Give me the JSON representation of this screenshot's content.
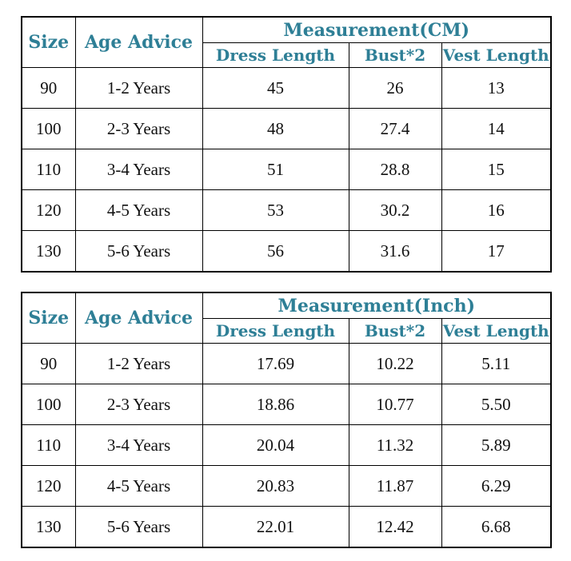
{
  "page": {
    "background": "#ffffff",
    "accent_color": "#2e7f96",
    "text_color": "#111111",
    "border_color": "#000000"
  },
  "chart_data": [
    {
      "type": "table",
      "title": "Measurement(CM)",
      "columns": [
        "Size",
        "Age Advice",
        "Dress Length",
        "Bust*2",
        "Vest Length"
      ],
      "rows": [
        [
          "90",
          "1-2 Years",
          "45",
          "26",
          "13"
        ],
        [
          "100",
          "2-3 Years",
          "48",
          "27.4",
          "14"
        ],
        [
          "110",
          "3-4 Years",
          "51",
          "28.8",
          "15"
        ],
        [
          "120",
          "4-5 Years",
          "53",
          "30.2",
          "16"
        ],
        [
          "130",
          "5-6 Years",
          "56",
          "31.6",
          "17"
        ]
      ]
    },
    {
      "type": "table",
      "title": "Measurement(Inch)",
      "columns": [
        "Size",
        "Age Advice",
        "Dress Length",
        "Bust*2",
        "Vest Length"
      ],
      "rows": [
        [
          "90",
          "1-2 Years",
          "17.69",
          "10.22",
          "5.11"
        ],
        [
          "100",
          "2-3 Years",
          "18.86",
          "10.77",
          "5.50"
        ],
        [
          "110",
          "3-4 Years",
          "20.04",
          "11.32",
          "5.89"
        ],
        [
          "120",
          "4-5 Years",
          "20.83",
          "11.87",
          "6.29"
        ],
        [
          "130",
          "5-6 Years",
          "22.01",
          "12.42",
          "6.68"
        ]
      ]
    }
  ]
}
